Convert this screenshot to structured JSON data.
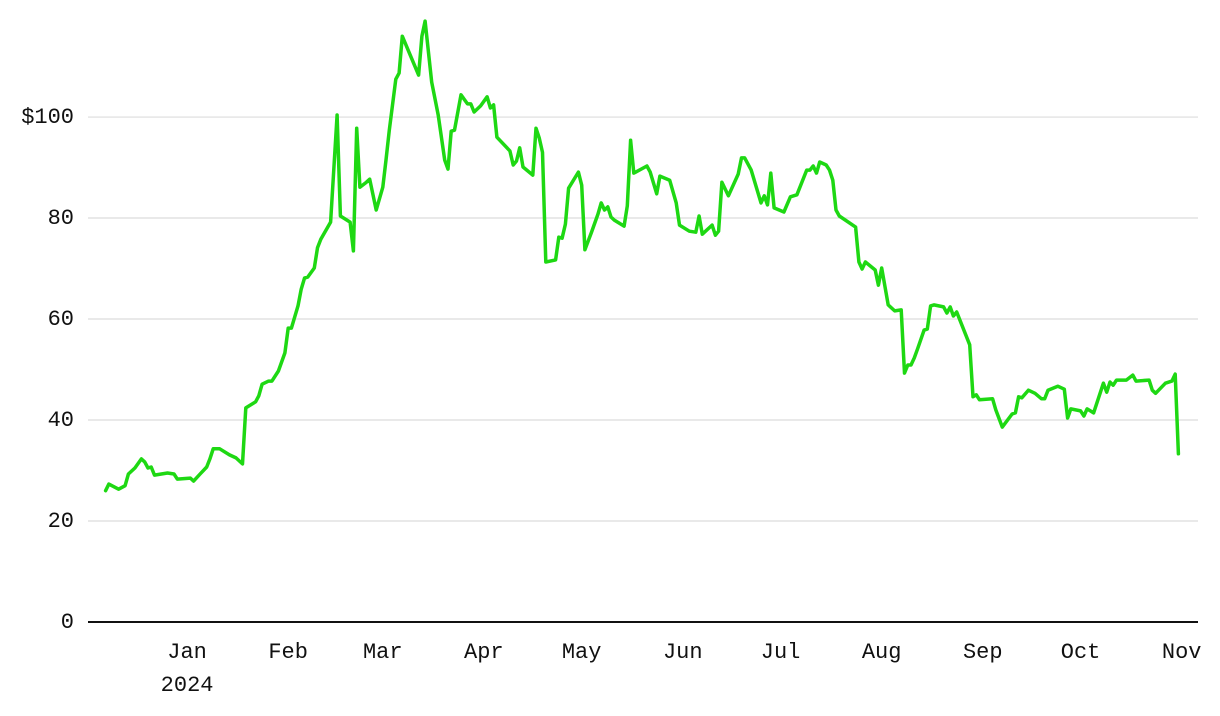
{
  "chart_data": {
    "type": "line",
    "color": "#1ed813",
    "grid": true,
    "x": [
      -25,
      -24,
      -21,
      -19,
      -18,
      -16,
      -14,
      -13,
      -12,
      -11,
      -10,
      -6,
      -4,
      -3,
      1,
      2,
      4,
      6,
      7,
      8,
      10,
      13,
      15,
      17,
      18,
      21,
      22,
      23,
      25,
      26,
      28,
      30,
      31,
      32,
      34,
      35,
      36,
      37,
      39,
      40,
      41,
      44,
      46,
      47,
      50,
      51,
      52,
      53,
      55,
      56,
      58,
      60,
      61,
      62,
      64,
      65,
      66,
      71,
      72,
      73,
      75,
      77,
      79,
      80,
      81,
      82,
      84,
      86,
      87,
      88,
      90,
      92,
      93,
      94,
      95,
      99,
      100,
      101,
      102,
      103,
      106,
      107,
      108,
      109,
      110,
      113,
      114,
      115,
      116,
      117,
      120,
      121,
      122,
      124,
      126,
      127,
      128,
      129,
      130,
      131,
      134,
      135,
      136,
      137,
      141,
      142,
      144,
      145,
      148,
      150,
      151,
      154,
      156,
      157,
      158,
      161,
      162,
      163,
      164,
      166,
      169,
      170,
      171,
      173,
      176,
      177,
      178,
      179,
      180,
      183,
      185,
      187,
      190,
      191,
      192,
      193,
      194,
      196,
      197,
      198,
      199,
      200,
      205,
      206,
      207,
      208,
      211,
      212,
      213,
      215,
      217,
      219,
      220,
      221,
      222,
      223,
      224,
      226,
      227,
      228,
      229,
      232,
      233,
      234,
      235,
      236,
      240,
      241,
      242,
      243,
      247,
      248,
      250,
      253,
      254,
      255,
      256,
      258,
      260,
      262,
      263,
      264,
      267,
      269,
      270,
      271,
      274,
      275,
      276,
      277,
      278,
      281,
      282,
      283,
      284,
      285,
      288,
      290,
      291,
      295,
      296,
      297,
      300,
      302,
      303,
      304
    ],
    "values": [
      26,
      27.3,
      26.3,
      27,
      29.3,
      30.5,
      32.3,
      31.7,
      30.5,
      30.7,
      29.1,
      29.5,
      29.3,
      28.3,
      28.5,
      27.9,
      29.3,
      30.7,
      32.3,
      34.3,
      34.3,
      33.1,
      32.5,
      31.3,
      42.4,
      43.6,
      44.8,
      47.1,
      47.7,
      47.7,
      49.7,
      53.3,
      58.2,
      58.2,
      62.6,
      65.9,
      68.1,
      68.3,
      70.1,
      74.1,
      75.8,
      79.2,
      100.4,
      80.4,
      79.2,
      73.5,
      97.8,
      86.1,
      87.1,
      87.7,
      81.6,
      86.1,
      91.5,
      97.4,
      107.5,
      108.7,
      116,
      108.3,
      116,
      119,
      106.9,
      100.4,
      91.5,
      89.7,
      97.2,
      97.4,
      104.4,
      102.6,
      102.6,
      101,
      102.2,
      104,
      101.8,
      102.4,
      96,
      93.3,
      90.5,
      91.3,
      93.9,
      90.1,
      88.5,
      97.8,
      95.8,
      93,
      71.3,
      71.7,
      76.2,
      76,
      78.8,
      85.9,
      89.1,
      86.5,
      73.7,
      77.2,
      80.8,
      83,
      81.6,
      82.2,
      80.2,
      79.6,
      78.4,
      82.4,
      95.4,
      88.9,
      90.3,
      89.1,
      84.8,
      88.3,
      87.5,
      83,
      78.6,
      77.4,
      77.2,
      80.4,
      76.8,
      78.6,
      76.6,
      77.4,
      87.1,
      84.4,
      88.7,
      91.9,
      91.9,
      89.5,
      83,
      84.4,
      82.6,
      88.9,
      82,
      81.2,
      84.2,
      84.6,
      89.5,
      89.5,
      90.3,
      88.9,
      91.1,
      90.5,
      89.5,
      87.5,
      81.6,
      80.4,
      78.2,
      71.3,
      69.9,
      71.3,
      69.7,
      66.7,
      70.1,
      62.8,
      61.6,
      61.8,
      49.3,
      50.9,
      50.9,
      52.3,
      54.1,
      57.8,
      58,
      62.6,
      62.8,
      62.4,
      61.2,
      62.4,
      60.6,
      61.4,
      54.9,
      44.6,
      45,
      44,
      44.2,
      42,
      38.6,
      41.2,
      41.4,
      44.6,
      44.4,
      45.9,
      45.3,
      44.2,
      44.2,
      45.9,
      46.7,
      46.1,
      40.4,
      42.2,
      41.8,
      40.8,
      42.2,
      41.8,
      41.4,
      47.3,
      45.5,
      47.5,
      46.9,
      47.9,
      47.9,
      48.9,
      47.7,
      47.9,
      45.9,
      45.3,
      47.3,
      47.7,
      49.1,
      33.3
    ],
    "xlim": [
      -31,
      310
    ],
    "xticks": [
      {
        "value": 0,
        "label": "Jan\n2024"
      },
      {
        "value": 31,
        "label": "Feb"
      },
      {
        "value": 60,
        "label": "Mar"
      },
      {
        "value": 91,
        "label": "Apr"
      },
      {
        "value": 121,
        "label": "May"
      },
      {
        "value": 152,
        "label": "Jun"
      },
      {
        "value": 182,
        "label": "Jul"
      },
      {
        "value": 213,
        "label": "Aug"
      },
      {
        "value": 244,
        "label": "Sep"
      },
      {
        "value": 274,
        "label": "Oct"
      },
      {
        "value": 305,
        "label": "Nov"
      }
    ],
    "ylim": [
      0,
      121
    ],
    "yticks": [
      0,
      20,
      40,
      60,
      80,
      {
        "value": 100,
        "label": "$100"
      }
    ]
  }
}
